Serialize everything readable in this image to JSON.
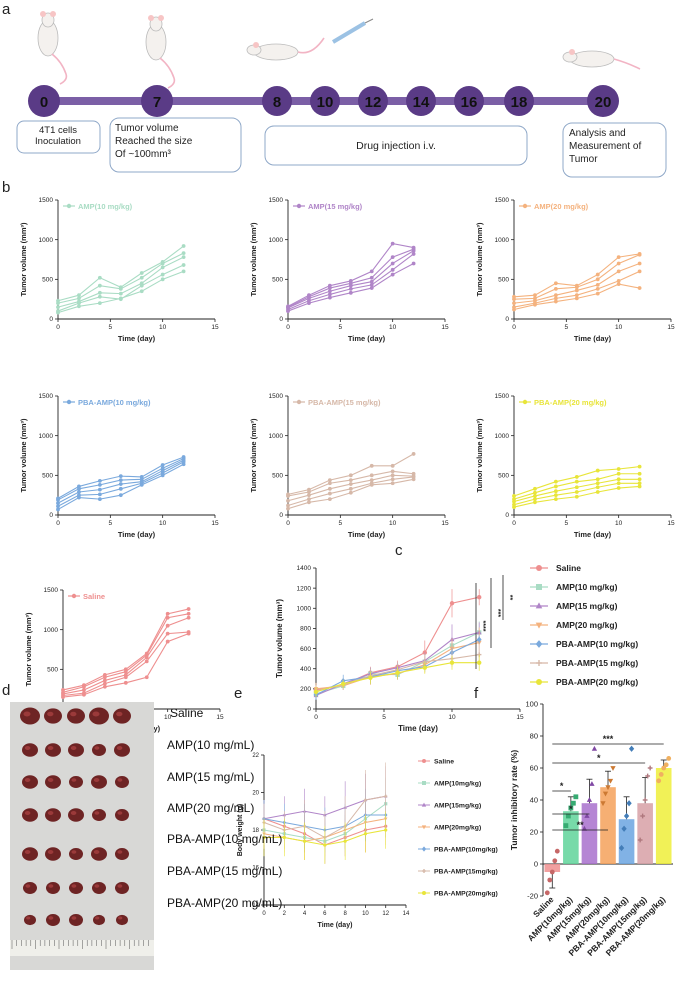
{
  "panel_letters": [
    "a",
    "b",
    "c",
    "d",
    "e",
    "f"
  ],
  "timeline": {
    "days": [
      "0",
      "7",
      "8",
      "10",
      "12",
      "14",
      "16",
      "18",
      "20"
    ],
    "box_inoculation": [
      "4T1 cells",
      "Inoculation"
    ],
    "box_tumor_size": [
      "Tumor volume",
      "Reached the size",
      "Of ~100mm³"
    ],
    "box_injection": "Drug injection i.v.",
    "box_analysis": [
      "Analysis and",
      "Measurement of",
      "Tumor"
    ],
    "colors": {
      "bar": "#7b5fa6",
      "circle": "#5a3b86",
      "box_border": "#8fa8c8"
    }
  },
  "axis_labels": {
    "tumor_volume": "Tumor volume (mm³)",
    "time_day": "Time (day)",
    "body_weight": "Body weight (g)",
    "inhibitory": "Tumor inhibitory rate (%)"
  },
  "stats_c": [
    "****",
    "***",
    "**"
  ],
  "photo_labels": [
    "Saline",
    "AMP(10 mg/mL)",
    "AMP(15 mg/mL)",
    "AMP(20 mg/mL)",
    "PBA-AMP(10 mg/mL)",
    "PBA-AMP(15 mg/mL)",
    "PBA-AMP(20 mg/mL)"
  ],
  "chart_data": [
    {
      "panel": "b",
      "type": "line",
      "legend": "AMP(10 mg/kg)",
      "color": "#a9dcc4",
      "x": [
        0,
        2,
        4,
        6,
        8,
        10,
        12
      ],
      "xlim": [
        0,
        15
      ],
      "ylim": [
        0,
        1500
      ],
      "xticks": [
        0,
        5,
        10,
        15
      ],
      "yticks": [
        0,
        500,
        1000,
        1500
      ],
      "series": [
        [
          80,
          160,
          200,
          260,
          350,
          500,
          600
        ],
        [
          100,
          200,
          280,
          250,
          420,
          560,
          680
        ],
        [
          150,
          220,
          330,
          320,
          450,
          650,
          780
        ],
        [
          200,
          260,
          420,
          380,
          520,
          700,
          830
        ],
        [
          230,
          300,
          520,
          400,
          580,
          720,
          920
        ]
      ]
    },
    {
      "panel": "b",
      "type": "line",
      "legend": "AMP(15 mg/kg)",
      "color": "#b085c8",
      "x": [
        0,
        2,
        4,
        6,
        8,
        10,
        12
      ],
      "xlim": [
        0,
        15
      ],
      "ylim": [
        0,
        1500
      ],
      "xticks": [
        0,
        5,
        10,
        15
      ],
      "yticks": [
        0,
        500,
        1000,
        1500
      ],
      "series": [
        [
          100,
          200,
          270,
          330,
          390,
          560,
          700
        ],
        [
          120,
          230,
          310,
          380,
          430,
          620,
          820
        ],
        [
          140,
          260,
          350,
          420,
          470,
          700,
          860
        ],
        [
          150,
          280,
          390,
          450,
          520,
          780,
          880
        ],
        [
          160,
          300,
          420,
          480,
          600,
          950,
          900
        ]
      ]
    },
    {
      "panel": "b",
      "type": "line",
      "legend": "AMP(20 mg/kg)",
      "color": "#f4b27e",
      "x": [
        0,
        2,
        4,
        6,
        8,
        10,
        12
      ],
      "xlim": [
        0,
        15
      ],
      "ylim": [
        0,
        1500
      ],
      "xticks": [
        0,
        5,
        10,
        15
      ],
      "yticks": [
        0,
        500,
        1000,
        1500
      ],
      "series": [
        [
          120,
          180,
          220,
          260,
          320,
          440,
          390
        ],
        [
          150,
          200,
          260,
          300,
          380,
          480,
          600
        ],
        [
          200,
          230,
          300,
          360,
          430,
          600,
          700
        ],
        [
          250,
          260,
          380,
          400,
          500,
          700,
          810
        ],
        [
          280,
          300,
          450,
          420,
          560,
          780,
          820
        ]
      ]
    },
    {
      "panel": "b",
      "type": "line",
      "legend": "PBA-AMP(10 mg/kg)",
      "color": "#7aa9dd",
      "x": [
        0,
        2,
        4,
        6,
        8,
        10,
        12
      ],
      "xlim": [
        0,
        15
      ],
      "ylim": [
        0,
        1500
      ],
      "xticks": [
        0,
        5,
        10,
        15
      ],
      "yticks": [
        0,
        500,
        1000,
        1500
      ],
      "series": [
        [
          70,
          220,
          200,
          250,
          380,
          500,
          640
        ],
        [
          110,
          250,
          260,
          330,
          400,
          530,
          670
        ],
        [
          150,
          290,
          320,
          390,
          420,
          560,
          690
        ],
        [
          190,
          330,
          380,
          440,
          450,
          590,
          710
        ],
        [
          210,
          360,
          430,
          490,
          480,
          630,
          730
        ]
      ]
    },
    {
      "panel": "b",
      "type": "line",
      "legend": "PBA-AMP(15 mg/kg)",
      "color": "#d6b8a8",
      "x": [
        0,
        2,
        4,
        6,
        8,
        10,
        12
      ],
      "xlim": [
        0,
        15
      ],
      "ylim": [
        0,
        1500
      ],
      "xticks": [
        0,
        5,
        10,
        15
      ],
      "yticks": [
        0,
        500,
        1000,
        1500
      ],
      "series": [
        [
          80,
          160,
          200,
          280,
          380,
          400,
          450
        ],
        [
          120,
          200,
          270,
          330,
          400,
          450,
          480
        ],
        [
          180,
          250,
          330,
          390,
          440,
          500,
          490
        ],
        [
          240,
          290,
          400,
          440,
          500,
          550,
          520
        ],
        [
          260,
          320,
          440,
          500,
          620,
          620,
          770
        ]
      ]
    },
    {
      "panel": "b",
      "type": "line",
      "legend": "PBA-AMP(20 mg/kg)",
      "color": "#e8e53a",
      "x": [
        0,
        2,
        4,
        6,
        8,
        10,
        12
      ],
      "xlim": [
        0,
        15
      ],
      "ylim": [
        0,
        1500
      ],
      "xticks": [
        0,
        5,
        10,
        15
      ],
      "yticks": [
        0,
        500,
        1000,
        1500
      ],
      "series": [
        [
          100,
          160,
          200,
          230,
          290,
          340,
          360
        ],
        [
          130,
          200,
          250,
          290,
          350,
          400,
          400
        ],
        [
          170,
          240,
          300,
          350,
          400,
          450,
          450
        ],
        [
          200,
          280,
          360,
          420,
          450,
          520,
          520
        ],
        [
          240,
          330,
          420,
          480,
          560,
          580,
          610
        ]
      ]
    },
    {
      "panel": "b",
      "type": "line",
      "legend": "Saline",
      "color": "#ee8f8f",
      "x": [
        0,
        2,
        4,
        6,
        8,
        10,
        12
      ],
      "xlim": [
        0,
        15
      ],
      "ylim": [
        0,
        1500
      ],
      "xticks": [
        0,
        5,
        10,
        15
      ],
      "yticks": [
        0,
        500,
        1000,
        1500
      ],
      "series": [
        [
          150,
          180,
          280,
          330,
          400,
          850,
          950
        ],
        [
          170,
          200,
          320,
          400,
          600,
          950,
          970
        ],
        [
          190,
          240,
          360,
          430,
          650,
          1050,
          1150
        ],
        [
          210,
          280,
          400,
          470,
          680,
          1150,
          1200
        ],
        [
          240,
          300,
          430,
          500,
          700,
          1200,
          1260
        ]
      ]
    },
    {
      "panel": "c",
      "type": "line",
      "legend_position": "right",
      "x": [
        0,
        2,
        4,
        6,
        8,
        10,
        12
      ],
      "xlim": [
        0,
        15
      ],
      "ylim": [
        0,
        1400
      ],
      "xticks": [
        0,
        5,
        10,
        15
      ],
      "yticks": [
        0,
        200,
        400,
        600,
        800,
        1000,
        1200,
        1400
      ],
      "series": [
        {
          "name": "Saline",
          "color": "#ee8f8f",
          "values": [
            190,
            240,
            360,
            420,
            560,
            1050,
            1110
          ],
          "err": [
            40,
            50,
            60,
            60,
            120,
            140,
            80
          ]
        },
        {
          "name": "AMP(10 mg/kg)",
          "color": "#a9dcc4",
          "values": [
            150,
            230,
            350,
            340,
            470,
            630,
            760
          ],
          "err": [
            50,
            40,
            60,
            50,
            80,
            70,
            110
          ]
        },
        {
          "name": "AMP(15 mg/kg)",
          "color": "#b085c8",
          "values": [
            135,
            250,
            350,
            410,
            480,
            690,
            760
          ],
          "err": [
            40,
            40,
            60,
            50,
            80,
            150,
            100
          ]
        },
        {
          "name": "AMP(20 mg/kg)",
          "color": "#f4b27e",
          "values": [
            200,
            230,
            320,
            350,
            440,
            600,
            660
          ],
          "err": [
            60,
            40,
            80,
            60,
            80,
            100,
            150
          ]
        },
        {
          "name": "PBA-AMP(10 mg/kg)",
          "color": "#7aa9dd",
          "values": [
            140,
            280,
            320,
            380,
            420,
            560,
            690
          ],
          "err": [
            50,
            60,
            70,
            80,
            50,
            50,
            40
          ]
        },
        {
          "name": "PBA-AMP(15 mg/kg)",
          "color": "#d6b8a8",
          "values": [
            180,
            240,
            330,
            390,
            470,
            500,
            540
          ],
          "err": [
            60,
            50,
            70,
            70,
            80,
            80,
            100
          ]
        },
        {
          "name": "PBA-AMP(20 mg/kg)",
          "color": "#e8e53a",
          "values": [
            170,
            250,
            310,
            360,
            410,
            460,
            460
          ],
          "err": [
            50,
            40,
            60,
            60,
            60,
            70,
            80
          ]
        }
      ]
    },
    {
      "panel": "e",
      "type": "line",
      "legend_position": "right",
      "x": [
        0,
        2,
        4,
        6,
        8,
        10,
        12
      ],
      "xlim": [
        0,
        14
      ],
      "ylim": [
        14,
        22
      ],
      "xticks": [
        0,
        2,
        4,
        6,
        8,
        10,
        12,
        14
      ],
      "yticks": [
        14,
        16,
        18,
        20,
        22
      ],
      "series": [
        {
          "name": "Saline",
          "color": "#ee8f8f",
          "values": [
            18.6,
            18.2,
            17.8,
            17.2,
            17.6,
            18.0,
            18.2
          ],
          "err": [
            0.8,
            0.8,
            1.0,
            1.0,
            1.0,
            1.2,
            1.0
          ]
        },
        {
          "name": "AMP(10mg/kg)",
          "color": "#a9dcc4",
          "values": [
            18.0,
            17.8,
            17.6,
            17.4,
            17.8,
            18.6,
            19.4
          ],
          "err": [
            0.8,
            0.8,
            0.8,
            1.0,
            1.0,
            1.0,
            1.4
          ]
        },
        {
          "name": "AMP(15mg/kg)",
          "color": "#b085c8",
          "values": [
            18.6,
            18.8,
            19.0,
            18.8,
            19.2,
            19.6,
            19.8
          ],
          "err": [
            1.0,
            1.0,
            1.2,
            1.0,
            1.4,
            1.4,
            1.6
          ]
        },
        {
          "name": "AMP(20mg/kg)",
          "color": "#f4b27e",
          "values": [
            17.8,
            17.6,
            17.4,
            17.6,
            18.0,
            18.4,
            18.6
          ],
          "err": [
            0.8,
            0.8,
            1.0,
            1.0,
            1.0,
            1.0,
            1.0
          ]
        },
        {
          "name": "PBA-AMP(10mg/kg)",
          "color": "#7aa9dd",
          "values": [
            18.6,
            18.4,
            18.2,
            18.0,
            18.2,
            18.8,
            18.8
          ],
          "err": [
            1.0,
            1.0,
            1.2,
            1.2,
            1.2,
            1.4,
            1.2
          ]
        },
        {
          "name": "PBA-AMP(15mg/kg)",
          "color": "#d6b8a8",
          "values": [
            18.4,
            18.0,
            18.2,
            17.6,
            18.2,
            19.6,
            19.8
          ],
          "err": [
            1.0,
            1.0,
            1.4,
            1.4,
            1.6,
            1.6,
            1.8
          ]
        },
        {
          "name": "PBA-AMP(20mg/kg)",
          "color": "#e8e53a",
          "values": [
            17.6,
            17.6,
            17.4,
            17.2,
            17.4,
            17.8,
            18.0
          ],
          "err": [
            1.0,
            1.0,
            1.0,
            1.0,
            1.0,
            1.0,
            1.0
          ]
        }
      ]
    },
    {
      "panel": "f",
      "type": "bar",
      "categories": [
        "Saline",
        "AMP(10mg/kg)",
        "AMP(15mg/kg)",
        "AMP(20mg/kg)",
        "PBA-AMP(10mg/kg)",
        "PBA-AMP(15mg/kg)",
        "PBA-AMP(20mg/kg)"
      ],
      "values": [
        -5,
        33,
        38,
        48,
        28,
        38,
        60
      ],
      "errors": [
        10,
        9,
        15,
        10,
        14,
        16,
        5
      ],
      "colors": [
        "#ee8f8f",
        "#5fd39a",
        "#a870cc",
        "#f4a15a",
        "#6ba5e0",
        "#d7a0a6",
        "#eeee3a"
      ],
      "points": [
        [
          -18,
          -10,
          -5,
          2,
          8
        ],
        [
          24,
          30,
          35,
          38,
          42
        ],
        [
          22,
          30,
          40,
          50,
          72
        ],
        [
          38,
          44,
          48,
          52,
          60
        ],
        [
          10,
          22,
          30,
          38,
          72
        ],
        [
          15,
          30,
          40,
          55,
          60
        ],
        [
          52,
          56,
          60,
          62,
          66
        ]
      ],
      "ylim": [
        -20,
        100
      ],
      "yticks": [
        -20,
        0,
        20,
        40,
        60,
        80,
        100
      ],
      "significance": [
        {
          "from": 0,
          "to": 1,
          "label": "*"
        },
        {
          "from": 0,
          "to": 2,
          "label": "*"
        },
        {
          "from": 0,
          "to": 3,
          "label": "**"
        },
        {
          "from": 0,
          "to": 5,
          "label": "*"
        },
        {
          "from": 0,
          "to": 6,
          "label": "***"
        }
      ]
    }
  ]
}
